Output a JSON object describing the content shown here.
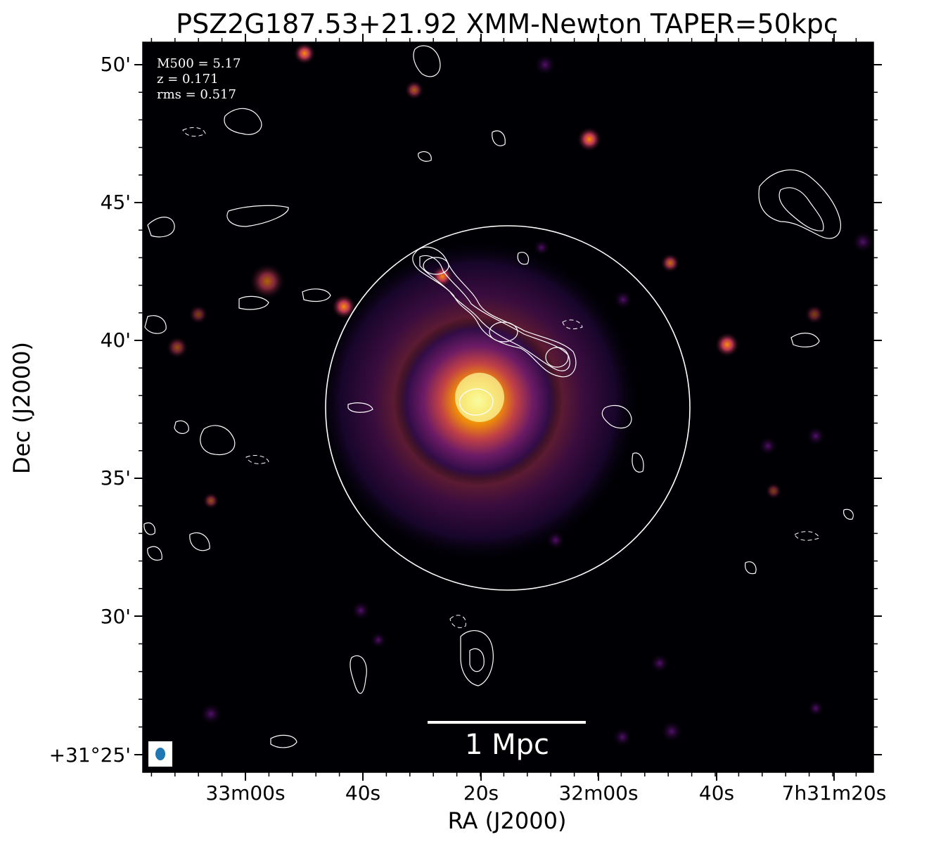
{
  "title": "PSZ2G187.53+21.92 XMM-Newton TAPER=50kpc",
  "info": {
    "mass": "M500 = 5.17",
    "redshift": "z = 0.171",
    "rms": "rms = 0.517"
  },
  "scalebar_label": "1 Mpc",
  "axes": {
    "xlabel": "RA (J2000)",
    "ylabel": "Dec (J2000)",
    "x_ticks": [
      "33m00s",
      "40s",
      "20s",
      "32m00s",
      "40s",
      "7h31m20s"
    ],
    "y_ticks": [
      "50'",
      "45'",
      "40'",
      "35'",
      "30'",
      "+31°25'"
    ]
  },
  "colors": {
    "background": "#000000",
    "contour": "#ffffff",
    "beam": "#1f77b4",
    "colormap": "inferno"
  }
}
